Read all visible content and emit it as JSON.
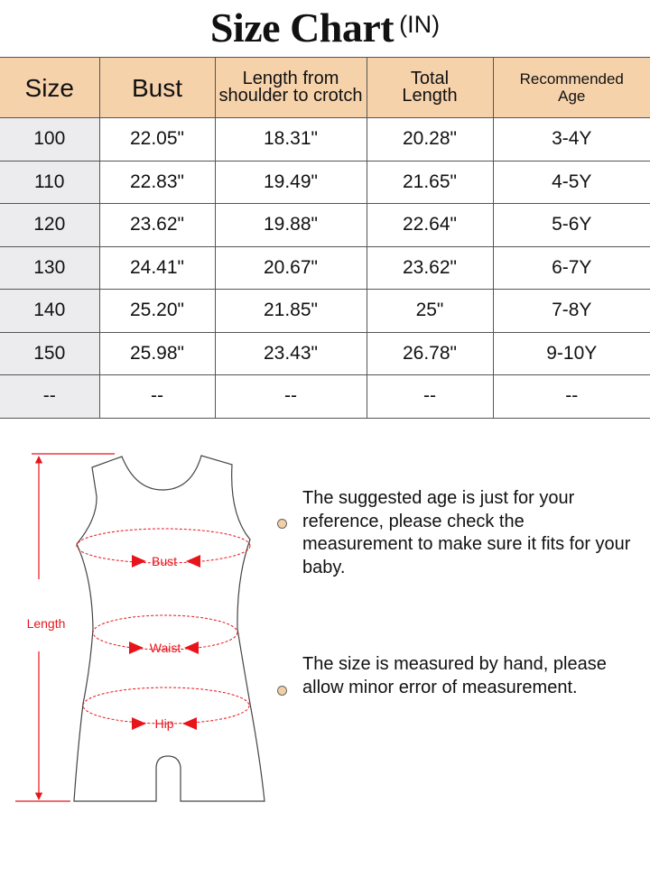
{
  "title": {
    "main": "Size Chart",
    "unit": "(IN)"
  },
  "table": {
    "headers": [
      "Size",
      "Bust",
      "Length from shoulder to crotch",
      "Total Length",
      "Recommended Age"
    ],
    "rows": [
      [
        "100",
        "22.05\"",
        "18.31\"",
        "20.28\"",
        "3-4Y"
      ],
      [
        "110",
        "22.83\"",
        "19.49\"",
        "21.65\"",
        "4-5Y"
      ],
      [
        "120",
        "23.62\"",
        "19.88\"",
        "22.64\"",
        "5-6Y"
      ],
      [
        "130",
        "24.41\"",
        "20.67\"",
        "23.62\"",
        "6-7Y"
      ],
      [
        "140",
        "25.20\"",
        "21.85\"",
        "25\"",
        "7-8Y"
      ],
      [
        "150",
        "25.98\"",
        "23.43\"",
        "26.78\"",
        "9-10Y"
      ],
      [
        "--",
        "--",
        "--",
        "--",
        "--"
      ]
    ]
  },
  "diagram": {
    "length": "Length",
    "bust": "Bust",
    "waist": "Waist",
    "hip": "Hip"
  },
  "notes": [
    "The suggested age is just for your reference, please check the measurement to make sure it fits for your baby.",
    "The size is measured by hand, please allow minor error of measurement."
  ],
  "colors": {
    "header_bg": "#f6d2ab",
    "size_col_bg": "#ececee",
    "measure_red": "#e8141b",
    "bullet": "#f2cfa6"
  }
}
